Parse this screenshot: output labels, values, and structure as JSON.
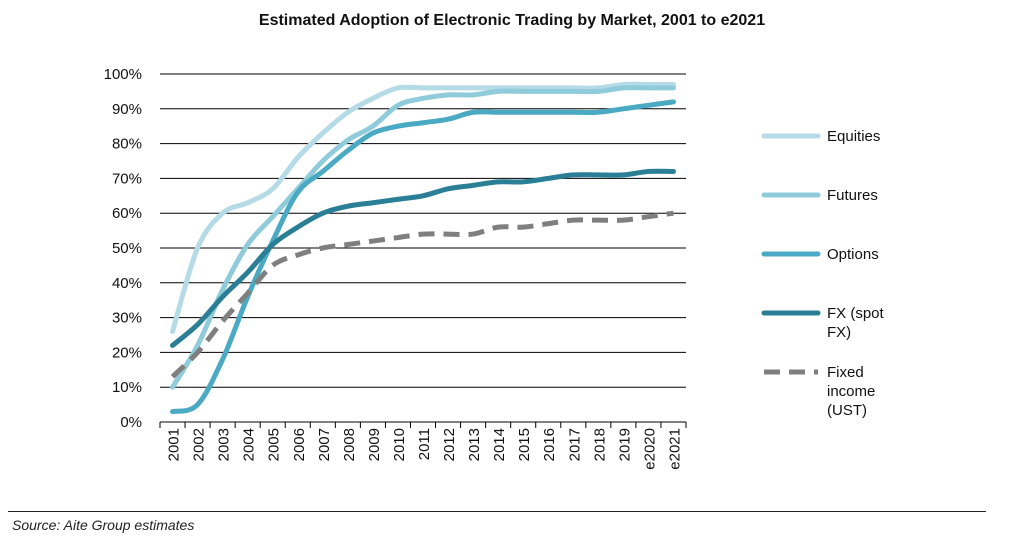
{
  "chart_data": {
    "type": "line",
    "title": "Estimated Adoption of Electronic Trading by Market, 2001 to e2021",
    "xlabel": "",
    "ylabel": "",
    "ylim": [
      0,
      100
    ],
    "y_ticks": [
      "0%",
      "10%",
      "20%",
      "30%",
      "40%",
      "50%",
      "60%",
      "70%",
      "80%",
      "90%",
      "100%"
    ],
    "categories": [
      "2001",
      "2002",
      "2003",
      "2004",
      "2005",
      "2006",
      "2007",
      "2008",
      "2009",
      "2010",
      "2011",
      "2012",
      "2013",
      "2014",
      "2015",
      "2016",
      "2017",
      "2018",
      "2019",
      "e2020",
      "e2021"
    ],
    "grid": true,
    "legend_position": "right",
    "series": [
      {
        "name": "Equities",
        "color": "#b5dbe6",
        "dash": false,
        "values": [
          26,
          50,
          60,
          63,
          67,
          76,
          83,
          89,
          93,
          96,
          96,
          96,
          96,
          96,
          96,
          96,
          96,
          96,
          97,
          97,
          97
        ]
      },
      {
        "name": "Futures",
        "color": "#8fcbdb",
        "dash": false,
        "values": [
          10,
          22,
          38,
          51,
          59,
          67,
          75,
          81,
          85,
          91,
          93,
          94,
          94,
          95,
          95,
          95,
          95,
          95,
          96,
          96,
          96
        ]
      },
      {
        "name": "Options",
        "color": "#4aa9c3",
        "dash": false,
        "values": [
          3,
          5,
          18,
          36,
          52,
          66,
          72,
          78,
          83,
          85,
          86,
          87,
          89,
          89,
          89,
          89,
          89,
          89,
          90,
          91,
          92
        ]
      },
      {
        "name": "FX (spot FX)",
        "color": "#2a7f96",
        "dash": false,
        "values": [
          22,
          28,
          36,
          43,
          51,
          56,
          60,
          62,
          63,
          64,
          65,
          67,
          68,
          69,
          69,
          70,
          71,
          71,
          71,
          72,
          72
        ]
      },
      {
        "name": "Fixed income (UST)",
        "color": "#7f7f7f",
        "dash": true,
        "values": [
          13,
          20,
          29,
          37,
          45,
          48,
          50,
          51,
          52,
          53,
          54,
          54,
          54,
          56,
          56,
          57,
          58,
          58,
          58,
          59,
          60
        ]
      }
    ],
    "legend_labels": [
      [
        "Equities"
      ],
      [
        "Futures"
      ],
      [
        "Options"
      ],
      [
        "FX (spot",
        "FX)"
      ],
      [
        "Fixed",
        "income",
        "(UST)"
      ]
    ]
  },
  "footer": {
    "source": "Source: Aite Group estimates"
  }
}
